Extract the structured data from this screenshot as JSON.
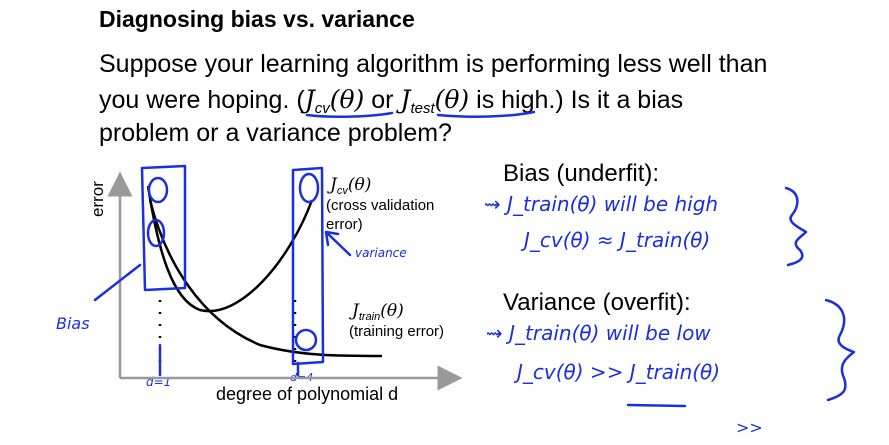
{
  "title": "Diagnosing bias vs. variance",
  "intro": {
    "line1": "Suppose your learning algorithm is performing less well than",
    "line2_pre": "you were hoping. (",
    "jcv_sym": "J",
    "jcv_sub": "cv",
    "theta_arg": "(θ)",
    "or_text": " or ",
    "jtest_sym": "J",
    "jtest_sub": "test",
    "line2_post": " is high.)  Is it a bias",
    "line3": "problem or a variance problem?"
  },
  "chart": {
    "ylabel": "error",
    "xlabel": "degree of polynomial d",
    "cv_label_sym": "J",
    "cv_label_sub": "cv",
    "cv_label_arg": "(θ)",
    "cv_note1": "(cross validation",
    "cv_note2": "error)",
    "train_label_sym": "J",
    "train_label_sub": "train",
    "train_label_arg": "(θ)",
    "train_note": "(training error)"
  },
  "bias_section": {
    "heading": "Bias (underfit):",
    "hand_line1": "⇝ J_train(θ) will be high",
    "hand_line2": "J_cv(θ) ≈ J_train(θ)"
  },
  "variance_section": {
    "heading": "Variance (overfit):",
    "hand_line1": "⇝ J_train(θ) will be low",
    "hand_line2": "J_cv(θ) >> J_train(θ)"
  },
  "handwriting": {
    "bias_label": "Bias",
    "variance_label": "variance",
    "d1": "d=1",
    "d4": "d=4",
    "corner": ">>"
  },
  "colors": {
    "ink": "#1a2fe0",
    "text": "#000000"
  }
}
